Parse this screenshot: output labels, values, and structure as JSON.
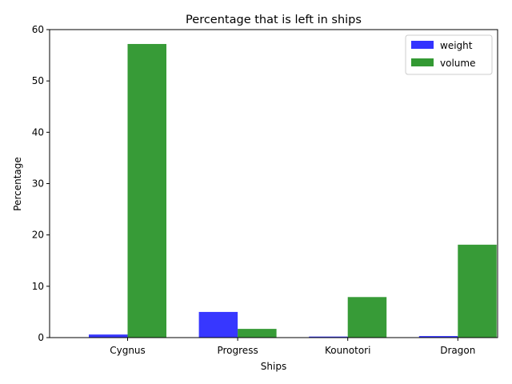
{
  "chart_data": {
    "type": "bar",
    "title": "Percentage that is left in ships",
    "xlabel": "Ships",
    "ylabel": "Percentage",
    "categories": [
      "Cygnus",
      "Progress",
      "Kounotori",
      "Dragon"
    ],
    "ylim": [
      0,
      60
    ],
    "yticks": [
      "0",
      "10",
      "20",
      "30",
      "40",
      "50",
      "60"
    ],
    "grid": false,
    "legend_position": "top-right",
    "series": [
      {
        "name": "weight",
        "color": "#3333ff",
        "values": [
          0.6,
          5.0,
          0.2,
          0.3
        ]
      },
      {
        "name": "volume",
        "color": "#339933",
        "values": [
          57.2,
          1.7,
          7.9,
          18.1
        ]
      }
    ]
  }
}
